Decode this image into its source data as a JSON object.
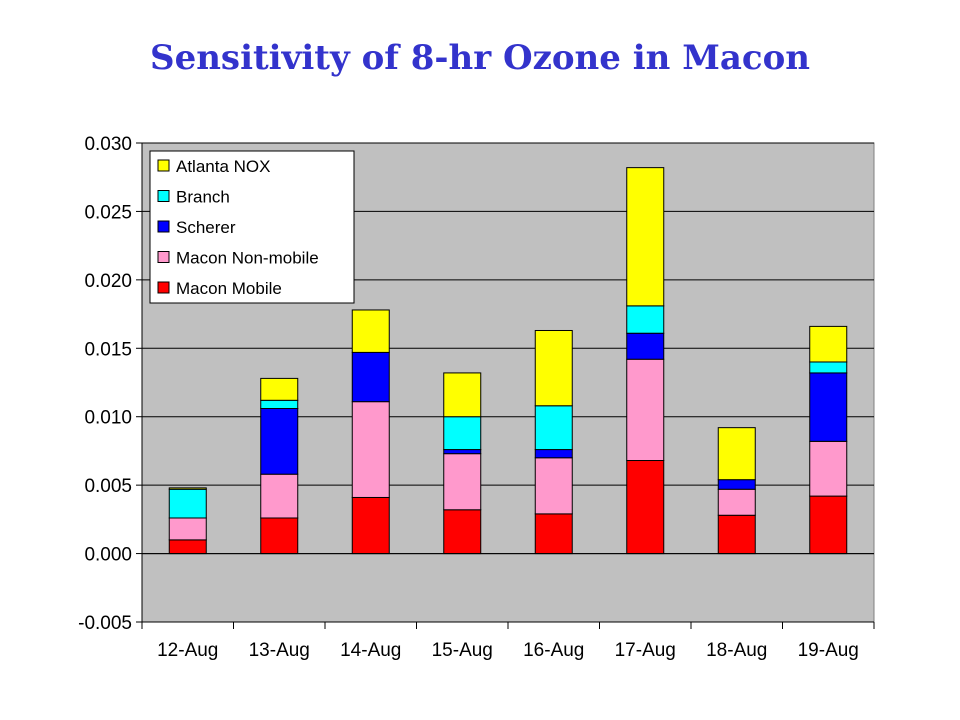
{
  "chart_data": {
    "type": "bar",
    "stacked": true,
    "title": "Sensitivity of 8-hr Ozone in Macon",
    "categories": [
      "12-Aug",
      "13-Aug",
      "14-Aug",
      "15-Aug",
      "16-Aug",
      "17-Aug",
      "18-Aug",
      "19-Aug"
    ],
    "ylim": [
      -0.005,
      0.03
    ],
    "yticks": [
      "-0.005",
      "0.000",
      "0.005",
      "0.010",
      "0.015",
      "0.020",
      "0.025",
      "0.030"
    ],
    "legend_position": "top-left",
    "grid": true,
    "series": [
      {
        "name": "Macon Mobile",
        "color": "#ff0000",
        "values": [
          0.001,
          0.0026,
          0.0041,
          0.0032,
          0.0029,
          0.0068,
          0.0028,
          0.0042
        ]
      },
      {
        "name": "Macon Non-mobile",
        "color": "#ff99cc",
        "values": [
          0.0016,
          0.0032,
          0.007,
          0.0041,
          0.0041,
          0.0074,
          0.0019,
          0.004
        ]
      },
      {
        "name": "Scherer",
        "color": "#0000ff",
        "values": [
          0,
          0.0048,
          0.0036,
          0.0003,
          0.0006,
          0.0019,
          0.0007,
          0.005
        ]
      },
      {
        "name": "Branch",
        "color": "#00ffff",
        "values": [
          0.0021,
          0.0006,
          0,
          0.0024,
          0.0032,
          0.002,
          0,
          0.0008
        ]
      },
      {
        "name": "Atlanta NOX",
        "color": "#ffff00",
        "values": [
          0.0001,
          0.0016,
          0.0031,
          0.0032,
          0.0055,
          0.0101,
          0.0038,
          0.0026
        ]
      }
    ]
  }
}
